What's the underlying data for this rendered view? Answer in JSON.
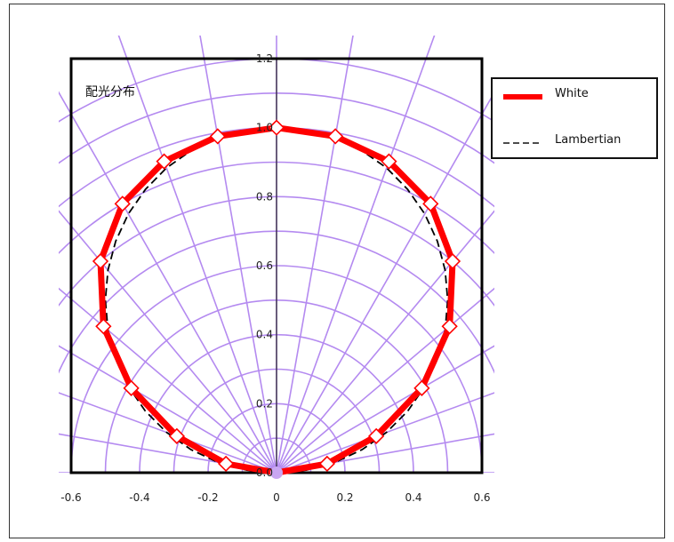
{
  "chart_data": {
    "type": "polar-line",
    "title": "配光分布",
    "xlim": [
      -0.6,
      0.6
    ],
    "ylim": [
      0,
      1.2
    ],
    "x_ticks": [
      "-0.6",
      "-0.4",
      "-0.2",
      "0",
      "0.2",
      "0.4",
      "0.6"
    ],
    "y_ticks": [
      "0.0",
      "0.2",
      "0.4",
      "0.6",
      "0.8",
      "1.0",
      "1.2"
    ],
    "polar_grid": {
      "radii": [
        0.1,
        0.2,
        0.3,
        0.4,
        0.5,
        0.6,
        0.7,
        0.8,
        0.9,
        1.0,
        1.1,
        1.2
      ],
      "angle_step_deg": 10,
      "color": "#b48af0"
    },
    "legend_position": "right-outside",
    "series": [
      {
        "name": "White",
        "color": "#ff0000",
        "style": "solid",
        "marker": "diamond",
        "angles_deg": [
          -90,
          -80,
          -70,
          -60,
          -50,
          -40,
          -30,
          -20,
          -10,
          0,
          10,
          20,
          30,
          40,
          50,
          60,
          70,
          80,
          90
        ],
        "intensity": [
          0.0,
          0.15,
          0.31,
          0.49,
          0.66,
          0.8,
          0.9,
          0.96,
          0.99,
          1.0,
          0.99,
          0.96,
          0.9,
          0.8,
          0.66,
          0.49,
          0.31,
          0.15,
          0.0
        ]
      },
      {
        "name": "Lambertian",
        "color": "#000000",
        "style": "dashed",
        "marker": "none",
        "angles_deg": [
          -90,
          -85,
          -80,
          -75,
          -70,
          -65,
          -60,
          -55,
          -50,
          -45,
          -40,
          -35,
          -30,
          -25,
          -20,
          -15,
          -10,
          -5,
          0,
          5,
          10,
          15,
          20,
          25,
          30,
          35,
          40,
          45,
          50,
          55,
          60,
          65,
          70,
          75,
          80,
          85,
          90
        ],
        "intensity": [
          0.0,
          0.087,
          0.174,
          0.259,
          0.342,
          0.423,
          0.5,
          0.574,
          0.643,
          0.707,
          0.766,
          0.819,
          0.866,
          0.906,
          0.94,
          0.966,
          0.985,
          0.996,
          1.0,
          0.996,
          0.985,
          0.966,
          0.94,
          0.906,
          0.866,
          0.819,
          0.766,
          0.707,
          0.643,
          0.574,
          0.5,
          0.423,
          0.342,
          0.259,
          0.174,
          0.087,
          0.0
        ]
      }
    ]
  }
}
